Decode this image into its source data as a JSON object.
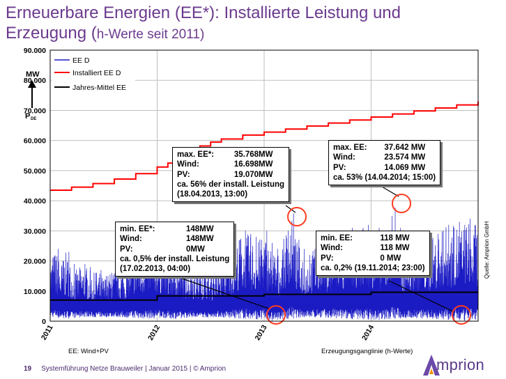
{
  "slide": {
    "title_line1": "Erneuerbare Energien (EE*): Installierte Leistung und",
    "title_line2_prefix": "Erzeugung (",
    "title_line2_sub": "h-Werte seit 2011)",
    "footer_page": "19",
    "footer_text": "Systemführung Netze Brauweiler | Januar 2015 | © Amprion",
    "note_left": "EE: Wind+PV",
    "note_right": "Erzeugungsganglinie (h-Werte)",
    "source": "Quelle: Amprion GmbH",
    "logo_text": "mprion",
    "axis_unit": "MW",
    "axis_symbol": "P",
    "axis_symbol_sub": "DE"
  },
  "colors": {
    "title": "#6b3a8e",
    "ee_d": "#1b1bc4",
    "installed": "#ff0000",
    "mean": "#000000",
    "highlight_circle": "#ff3b1f",
    "logo": "#5a3a8a"
  },
  "chart_data": {
    "type": "line",
    "ylim": [
      0,
      90000
    ],
    "yticks": [
      "0",
      "10.000",
      "20.000",
      "30.000",
      "40.000",
      "50.000",
      "60.000",
      "70.000",
      "80.000",
      "90.000"
    ],
    "ytick_values": [
      0,
      10000,
      20000,
      30000,
      40000,
      50000,
      60000,
      70000,
      80000,
      90000
    ],
    "xlim": [
      2011.0,
      2015.0
    ],
    "xticks": [
      "2011",
      "2012",
      "2013",
      "2014"
    ],
    "xtick_values": [
      2011,
      2012,
      2013,
      2014
    ],
    "legend": [
      "EE D",
      "Installiert EE D",
      "Jahres-Mittel EE"
    ],
    "legend_placement": "top-left",
    "grid": true,
    "series": [
      {
        "name": "Installiert EE D",
        "x": [
          2011.0,
          2011.2,
          2011.4,
          2011.6,
          2011.8,
          2012.0,
          2012.1,
          2012.2,
          2012.3,
          2012.4,
          2012.5,
          2012.6,
          2012.8,
          2013.0,
          2013.2,
          2013.4,
          2013.6,
          2013.8,
          2014.0,
          2014.2,
          2014.4,
          2014.6,
          2014.8,
          2015.0
        ],
        "values": [
          43500,
          44500,
          45700,
          47200,
          49000,
          51200,
          52500,
          54000,
          56500,
          58200,
          59500,
          60500,
          61800,
          62800,
          63800,
          64800,
          65800,
          66800,
          67800,
          68800,
          69800,
          70800,
          71800,
          73000
        ]
      },
      {
        "name": "Jahres-Mittel EE",
        "x": [
          2011.0,
          2012.0,
          2012.0,
          2013.0,
          2013.0,
          2014.0,
          2014.0,
          2015.0
        ],
        "values": [
          7000,
          7000,
          8400,
          8400,
          8900,
          8900,
          9600,
          9600
        ]
      },
      {
        "name": "EE D",
        "x": [
          2011.0,
          2011.05,
          2011.1,
          2011.15,
          2011.2,
          2011.25,
          2011.3,
          2011.35,
          2011.4,
          2011.45,
          2011.5,
          2011.55,
          2011.6,
          2011.65,
          2011.7,
          2011.75,
          2011.8,
          2011.85,
          2011.9,
          2011.95,
          2012.0,
          2012.05,
          2012.1,
          2012.15,
          2012.2,
          2012.25,
          2012.3,
          2012.35,
          2012.4,
          2012.45,
          2012.5,
          2012.55,
          2012.6,
          2012.65,
          2012.7,
          2012.75,
          2012.8,
          2012.85,
          2012.9,
          2012.95,
          2013.0,
          2013.05,
          2013.1,
          2013.15,
          2013.2,
          2013.25,
          2013.3,
          2013.35,
          2013.4,
          2013.45,
          2013.5,
          2013.55,
          2013.6,
          2013.65,
          2013.7,
          2013.75,
          2013.8,
          2013.85,
          2013.9,
          2013.95,
          2014.0,
          2014.05,
          2014.1,
          2014.15,
          2014.2,
          2014.25,
          2014.3,
          2014.35,
          2014.4,
          2014.45,
          2014.5,
          2014.55,
          2014.6,
          2014.65,
          2014.7,
          2014.75,
          2014.8,
          2014.85,
          2014.9,
          2014.95
        ],
        "max_values": [
          21000,
          24000,
          20000,
          23000,
          19000,
          17000,
          19000,
          18000,
          16000,
          17000,
          15000,
          16000,
          17000,
          19000,
          18000,
          21000,
          25000,
          24000,
          26000,
          23000,
          25000,
          24000,
          22000,
          24000,
          21000,
          18000,
          19000,
          18000,
          17000,
          19000,
          17000,
          18000,
          20000,
          22000,
          24000,
          27000,
          30000,
          29000,
          28000,
          27000,
          30000,
          26000,
          24000,
          22000,
          30000,
          35768,
          27000,
          24000,
          22000,
          24000,
          26000,
          27000,
          25000,
          28000,
          29000,
          27000,
          31000,
          30000,
          31000,
          32000,
          30000,
          31000,
          28000,
          30000,
          37642,
          31000,
          25000,
          24000,
          27000,
          26000,
          28000,
          27000,
          29000,
          30000,
          32000,
          31000,
          33000,
          32000,
          34000,
          32000
        ],
        "min_values": [
          1500,
          1200,
          1000,
          900,
          1100,
          1200,
          1400,
          1500,
          1300,
          1400,
          1300,
          1500,
          1400,
          1300,
          1200,
          1100,
          1000,
          900,
          900,
          1000,
          1100,
          1000,
          900,
          800,
          900,
          1100,
          1300,
          1400,
          1300,
          1200,
          1300,
          1400,
          1200,
          1100,
          1000,
          900,
          800,
          800,
          700,
          600,
          600,
          148,
          500,
          700,
          800,
          900,
          1100,
          1300,
          1400,
          1200,
          1300,
          1200,
          1100,
          1000,
          900,
          800,
          700,
          700,
          600,
          600,
          500,
          400,
          600,
          700,
          800,
          900,
          1000,
          1100,
          1000,
          900,
          900,
          800,
          700,
          600,
          500,
          400,
          300,
          118,
          300,
          400
        ]
      }
    ],
    "annotations": [
      {
        "label": "max. EE*:",
        "value": "35.768MW"
      },
      {
        "label": "Wind:",
        "value": "16.698MW"
      },
      {
        "label": "PV:",
        "value": "19.070MW"
      },
      {
        "label": "ca. 56% der install. Leistung",
        "value": ""
      },
      {
        "label": "(18.04.2013, 13:00)",
        "value": ""
      }
    ]
  },
  "annotation_boxes": {
    "max2013": {
      "r1k": "max. EE*:",
      "r1v": "35.768MW",
      "r2k": "Wind:",
      "r2v": "16.698MW",
      "r3k": "PV:",
      "r3v": "19.070MW",
      "r4": "ca. 56% der install. Leistung",
      "r5": "(18.04.2013, 13:00)"
    },
    "max2014": {
      "r1k": "max. EE:",
      "r1v": "37.642 MW",
      "r2k": "Wind:",
      "r2v": "23.574 MW",
      "r3k": "PV:",
      "r3v": "14.069 MW",
      "r4": "ca. 53% (14.04.2014; 15:00)"
    },
    "min2013": {
      "r1k": "min. EE*:",
      "r1v": "148MW",
      "r2k": "Wind:",
      "r2v": "148MW",
      "r3k": "PV:",
      "r3v": "0MW",
      "r4": "ca.  0,5% der install. Leistung",
      "r5": "(17.02.2013, 04:00)"
    },
    "min2014": {
      "r1k": "min. EE:",
      "r1v": "118 MW",
      "r2k": "Wind:",
      "r2v": "118 MW",
      "r3k": "PV:",
      "r3v": "0 MW",
      "r4": "ca.  0,2% (19.11.2014; 23:00)"
    }
  }
}
